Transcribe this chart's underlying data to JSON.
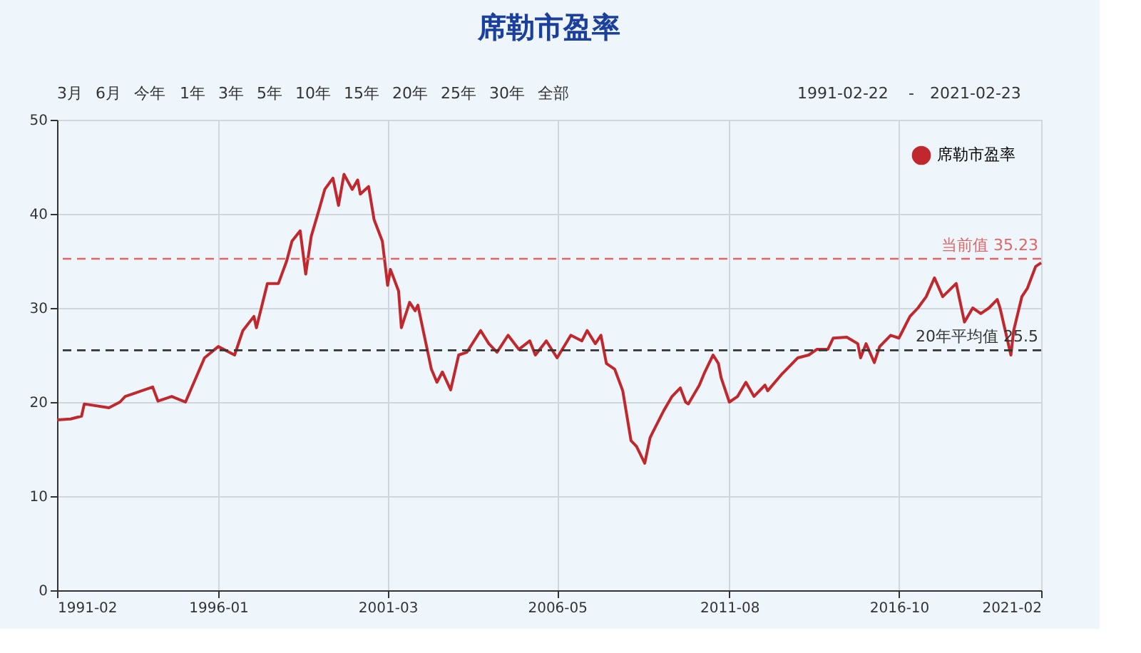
{
  "chart_data": {
    "type": "line",
    "title": "席勒市盈率",
    "annotations": [
      "3月",
      "6月",
      "今年",
      "1年",
      "3年",
      "5年",
      "10年",
      "15年",
      "20年",
      "25年",
      "30年",
      "全部",
      "1991-02-22",
      "-",
      "2021-02-23"
    ],
    "x": [
      "1991-02",
      "1991-07",
      "1991-11",
      "1991-12",
      "1992-09",
      "1993-01",
      "1993-03",
      "1994-01",
      "1994-03",
      "1994-08",
      "1995-01",
      "1995-08",
      "1996-01",
      "1996-07",
      "1996-10",
      "1997-02",
      "1997-03",
      "1997-07",
      "1997-11",
      "1998-02",
      "1998-04",
      "1998-07",
      "1998-09",
      "1998-11",
      "1999-02",
      "1999-04",
      "1999-07",
      "1999-09",
      "1999-11",
      "2000-02",
      "2000-04",
      "2000-05",
      "2000-08",
      "2000-10",
      "2001-01",
      "2001-03",
      "2001-04",
      "2001-07",
      "2001-08",
      "2001-11",
      "2002-01",
      "2002-02",
      "2002-04",
      "2002-07",
      "2002-09",
      "2002-11",
      "2003-02",
      "2003-05",
      "2003-08",
      "2004-01",
      "2004-04",
      "2004-07",
      "2004-11",
      "2005-03",
      "2005-07",
      "2005-09",
      "2006-01",
      "2006-05",
      "2006-10",
      "2007-02",
      "2007-04",
      "2007-07",
      "2007-09",
      "2007-11",
      "2008-02",
      "2008-05",
      "2008-08",
      "2008-10",
      "2009-01",
      "2009-03",
      "2009-04",
      "2009-08",
      "2009-11",
      "2010-02",
      "2010-04",
      "2010-05",
      "2010-09",
      "2010-11",
      "2011-02",
      "2011-04",
      "2011-05",
      "2011-08",
      "2011-11",
      "2012-02",
      "2012-05",
      "2012-09",
      "2012-10",
      "2013-03",
      "2013-05",
      "2013-09",
      "2014-01",
      "2014-04",
      "2014-08",
      "2014-10",
      "2015-03",
      "2015-07",
      "2015-08",
      "2015-10",
      "2016-01",
      "2016-03",
      "2016-07",
      "2016-10",
      "2017-02",
      "2017-05",
      "2017-08",
      "2017-11",
      "2018-02",
      "2018-07",
      "2018-10",
      "2019-01",
      "2019-04",
      "2019-07",
      "2019-10",
      "2019-11",
      "2020-03",
      "2020-04",
      "2020-07",
      "2020-09",
      "2020-12",
      "2021-02"
    ],
    "series": [
      {
        "name": "席勒市盈率",
        "color": "#c0282d",
        "values": [
          18.1,
          18.2,
          18.5,
          19.8,
          19.4,
          20.0,
          20.6,
          21.6,
          20.1,
          20.6,
          20.0,
          24.7,
          25.9,
          25.0,
          27.6,
          29.1,
          27.9,
          32.6,
          32.6,
          35.0,
          37.1,
          38.2,
          33.6,
          37.6,
          40.6,
          42.6,
          43.8,
          40.9,
          44.2,
          42.6,
          43.6,
          42.1,
          42.9,
          39.4,
          37.1,
          32.4,
          34.1,
          31.8,
          27.9,
          30.6,
          29.7,
          30.3,
          27.6,
          23.5,
          22.1,
          23.2,
          21.3,
          25.0,
          25.3,
          27.6,
          26.2,
          25.3,
          27.1,
          25.6,
          26.5,
          25.0,
          26.5,
          24.7,
          27.1,
          26.5,
          27.6,
          26.2,
          27.1,
          24.1,
          23.5,
          21.2,
          15.9,
          15.3,
          13.5,
          16.2,
          16.8,
          19.1,
          20.6,
          21.5,
          20.0,
          19.8,
          21.8,
          23.2,
          25.0,
          24.1,
          22.6,
          20.0,
          20.6,
          22.1,
          20.6,
          21.8,
          21.2,
          22.9,
          23.5,
          24.7,
          25.0,
          25.6,
          25.6,
          26.8,
          26.9,
          26.2,
          24.7,
          26.2,
          24.2,
          25.9,
          27.1,
          26.8,
          29.1,
          30.0,
          31.2,
          33.2,
          31.2,
          32.6,
          28.5,
          30.0,
          29.4,
          30.0,
          30.9,
          30.0,
          25.0,
          27.6,
          31.2,
          32.1,
          34.4,
          34.8
        ]
      }
    ],
    "xlim": [
      "1991-02",
      "2021-02"
    ],
    "xticks": [
      "1991-02",
      "1996-01",
      "2001-03",
      "2006-05",
      "2011-08",
      "2016-10",
      "2021-02"
    ],
    "ylim": [
      0,
      50
    ],
    "yticks": [
      0,
      10,
      20,
      30,
      40,
      50
    ],
    "ref_lines": [
      {
        "axis": "y",
        "value": 35.23,
        "label": "当前值 35.23",
        "color": "#e06666",
        "line_style": "dashed"
      },
      {
        "axis": "y",
        "value": 25.5,
        "label": "20年平均值 25.5",
        "color": "#333333",
        "line_style": "dashed"
      }
    ],
    "grid": true,
    "legend": "top right",
    "marker": "none",
    "line_style": "solid"
  }
}
